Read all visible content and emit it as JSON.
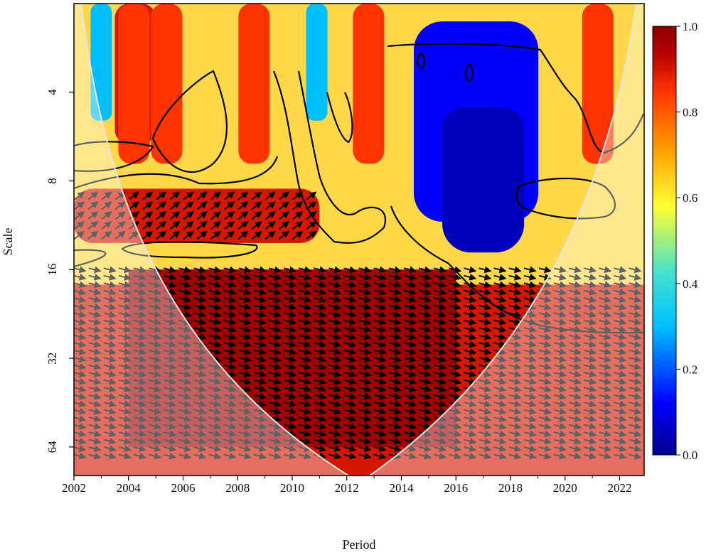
{
  "chart_data": {
    "type": "heatmap",
    "subtype": "wavelet coherence",
    "xlabel": "Period",
    "ylabel": "Scale",
    "x_ticks": [
      "2002",
      "2004",
      "2006",
      "2008",
      "2010",
      "2012",
      "2014",
      "2016",
      "2018",
      "2020",
      "2022"
    ],
    "x_range": [
      2002,
      2022.9
    ],
    "y_ticks": [
      "4",
      "8",
      "16",
      "32",
      "64"
    ],
    "y_scale": "log2",
    "y_range": [
      2,
      80
    ],
    "colorbar": {
      "ticks": [
        "0.0",
        "0.2",
        "0.4",
        "0.6",
        "0.8",
        "1.0"
      ],
      "range": [
        0,
        1
      ],
      "colors": [
        "#00008b",
        "#0000ff",
        "#00bfff",
        "#40e0d0",
        "#ffff33",
        "#ff9900",
        "#ff3300",
        "#b20000",
        "#8b0000"
      ]
    },
    "dominant_phase": "in-phase (arrows pointing right), strongest coherence for scales 16-64 between 2004 and 2016",
    "regions": [
      {
        "x0": 2004.0,
        "x1": 2016.0,
        "y0": 16,
        "y1": 64,
        "value": 0.97
      },
      {
        "x0": 2002.0,
        "x1": 2011.0,
        "y0": 8.5,
        "y1": 13,
        "value": 0.9
      },
      {
        "x0": 2015.5,
        "x1": 2018.5,
        "y0": 2.5,
        "y1": 14,
        "value": 0.05
      },
      {
        "x0": 2003.5,
        "x1": 2005.0,
        "y0": 2,
        "y1": 6,
        "value": 0.9
      }
    ]
  },
  "colors": {
    "cone_shade": "#ffffff",
    "contour": "#000000",
    "coi_line": "#e6e6e6"
  }
}
